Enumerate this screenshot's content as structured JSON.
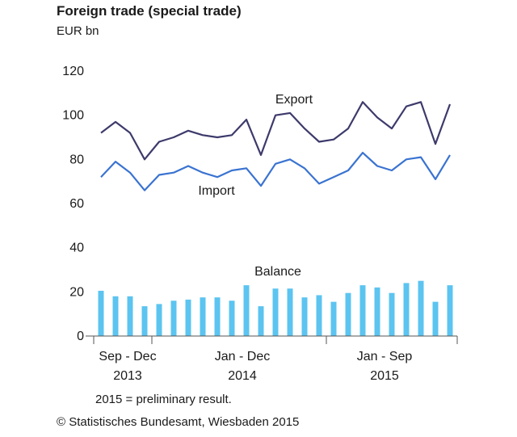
{
  "chart_data": {
    "type": "line",
    "title": "Foreign trade (special trade)",
    "ylabel": "EUR bn",
    "ylim": [
      0,
      120
    ],
    "yticks": [
      0,
      20,
      40,
      60,
      80,
      100,
      120
    ],
    "grid": false,
    "period_labels": [
      {
        "range": "Sep - Dec",
        "year": "2013"
      },
      {
        "range": "Jan - Dec",
        "year": "2014"
      },
      {
        "range": "Jan - Sep",
        "year": "2015"
      }
    ],
    "months": [
      "2013-09",
      "2013-10",
      "2013-11",
      "2013-12",
      "2014-01",
      "2014-02",
      "2014-03",
      "2014-04",
      "2014-05",
      "2014-06",
      "2014-07",
      "2014-08",
      "2014-09",
      "2014-10",
      "2014-11",
      "2014-12",
      "2015-01",
      "2015-02",
      "2015-03",
      "2015-04",
      "2015-05",
      "2015-06",
      "2015-07",
      "2015-08",
      "2015-09"
    ],
    "series": [
      {
        "name": "Export",
        "type": "line",
        "color": "#3d3a6b",
        "values": [
          92,
          97,
          92,
          80,
          88,
          90,
          93,
          91,
          90,
          91,
          98,
          82,
          100,
          101,
          94,
          88,
          89,
          94,
          106,
          99,
          94,
          104,
          106,
          87,
          105
        ]
      },
      {
        "name": "Import",
        "type": "line",
        "color": "#3a73d1",
        "values": [
          72,
          79,
          74,
          66,
          73,
          74,
          77,
          74,
          72,
          75,
          76,
          68,
          78,
          80,
          76,
          69,
          72,
          75,
          83,
          77,
          75,
          80,
          81,
          71,
          82
        ]
      },
      {
        "name": "Balance",
        "type": "bar",
        "color": "#5cc4f0",
        "values": [
          20.5,
          18,
          18,
          13.5,
          14.5,
          16,
          16.5,
          17.5,
          17.5,
          16,
          23,
          13.5,
          21.5,
          21.5,
          17.5,
          18.5,
          15.5,
          19.5,
          23,
          22,
          19.5,
          24,
          25,
          15.5,
          23
        ]
      }
    ],
    "footnote": "2015 = preliminary result."
  },
  "source": "© Statistisches Bundesamt, Wiesbaden 2015"
}
